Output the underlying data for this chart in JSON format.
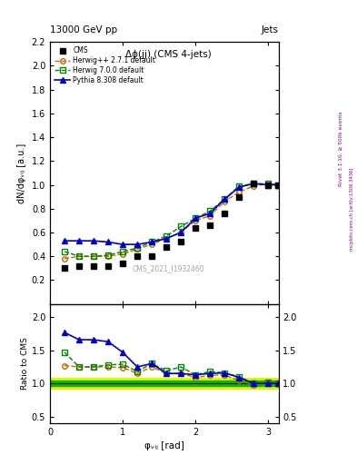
{
  "title_top": "13000 GeV pp",
  "title_right": "Jets",
  "annotation": "Δϕ(jj) (CMS 4-jets)",
  "watermark": "CMS_2021_I1932460",
  "rivet_text": "Rivet 3.1.10, ≥ 500k events",
  "mcplots_text": "mcplots.cern.ch [arXiv:1306.3436]",
  "ylabel_main": "dN/dφᵥᵢⱼ [a.u.]",
  "ylabel_ratio": "Ratio to CMS",
  "xlabel": "φᵥᵢⱼ [rad]",
  "xlim": [
    0,
    3.14159
  ],
  "ylim_main": [
    0.0,
    2.2
  ],
  "ylim_ratio": [
    0.4,
    2.2
  ],
  "cms_x": [
    0.2,
    0.4,
    0.6,
    0.8,
    1.0,
    1.2,
    1.4,
    1.6,
    1.8,
    2.0,
    2.2,
    2.4,
    2.6,
    2.8,
    3.0,
    3.14
  ],
  "cms_y": [
    0.3,
    0.32,
    0.32,
    0.32,
    0.34,
    0.4,
    0.4,
    0.48,
    0.52,
    0.64,
    0.66,
    0.76,
    0.9,
    1.01,
    1.0,
    1.0
  ],
  "herwig_pp_x": [
    0.2,
    0.4,
    0.6,
    0.8,
    1.0,
    1.2,
    1.4,
    1.6,
    1.8,
    2.0,
    2.2,
    2.4,
    2.6,
    2.8,
    3.0,
    3.14
  ],
  "herwig_pp_y": [
    0.38,
    0.4,
    0.4,
    0.4,
    0.42,
    0.46,
    0.5,
    0.55,
    0.6,
    0.7,
    0.74,
    0.86,
    0.94,
    0.99,
    1.01,
    1.0
  ],
  "herwig7_x": [
    0.2,
    0.4,
    0.6,
    0.8,
    1.0,
    1.2,
    1.4,
    1.6,
    1.8,
    2.0,
    2.2,
    2.4,
    2.6,
    2.8,
    3.0,
    3.14
  ],
  "herwig7_y": [
    0.44,
    0.4,
    0.4,
    0.41,
    0.44,
    0.47,
    0.52,
    0.57,
    0.65,
    0.72,
    0.78,
    0.88,
    0.99,
    1.01,
    1.01,
    1.0
  ],
  "pythia_x": [
    0.2,
    0.4,
    0.6,
    0.8,
    1.0,
    1.2,
    1.4,
    1.6,
    1.8,
    2.0,
    2.2,
    2.4,
    2.6,
    2.8,
    3.0,
    3.14
  ],
  "pythia_y": [
    0.53,
    0.53,
    0.53,
    0.52,
    0.5,
    0.5,
    0.52,
    0.55,
    0.6,
    0.72,
    0.76,
    0.88,
    0.98,
    1.01,
    1.0,
    1.0
  ],
  "ratio_herwig_pp": [
    1.27,
    1.25,
    1.25,
    1.25,
    1.24,
    1.15,
    1.25,
    1.15,
    1.15,
    1.09,
    1.12,
    1.13,
    1.04,
    0.98,
    1.01,
    1.0
  ],
  "ratio_herwig7": [
    1.47,
    1.25,
    1.25,
    1.28,
    1.29,
    1.18,
    1.3,
    1.19,
    1.25,
    1.13,
    1.18,
    1.16,
    1.1,
    1.0,
    1.01,
    1.0
  ],
  "ratio_pythia": [
    1.77,
    1.66,
    1.66,
    1.63,
    1.47,
    1.25,
    1.3,
    1.15,
    1.15,
    1.13,
    1.15,
    1.16,
    1.09,
    1.0,
    1.0,
    1.0
  ],
  "color_cms": "#000000",
  "color_herwig_pp": "#cc6600",
  "color_herwig7": "#008800",
  "color_pythia": "#0000cc",
  "green_band_lo": 0.96,
  "green_band_hi": 1.04,
  "yellow_band_lo": 0.92,
  "yellow_band_hi": 1.08,
  "green_color": "#00bb00",
  "yellow_color": "#eeee00",
  "legend_labels": [
    "CMS",
    "Herwig++ 2.7.1 default",
    "Herwig 7.0.0 default",
    "Pythia 8.308 default"
  ]
}
